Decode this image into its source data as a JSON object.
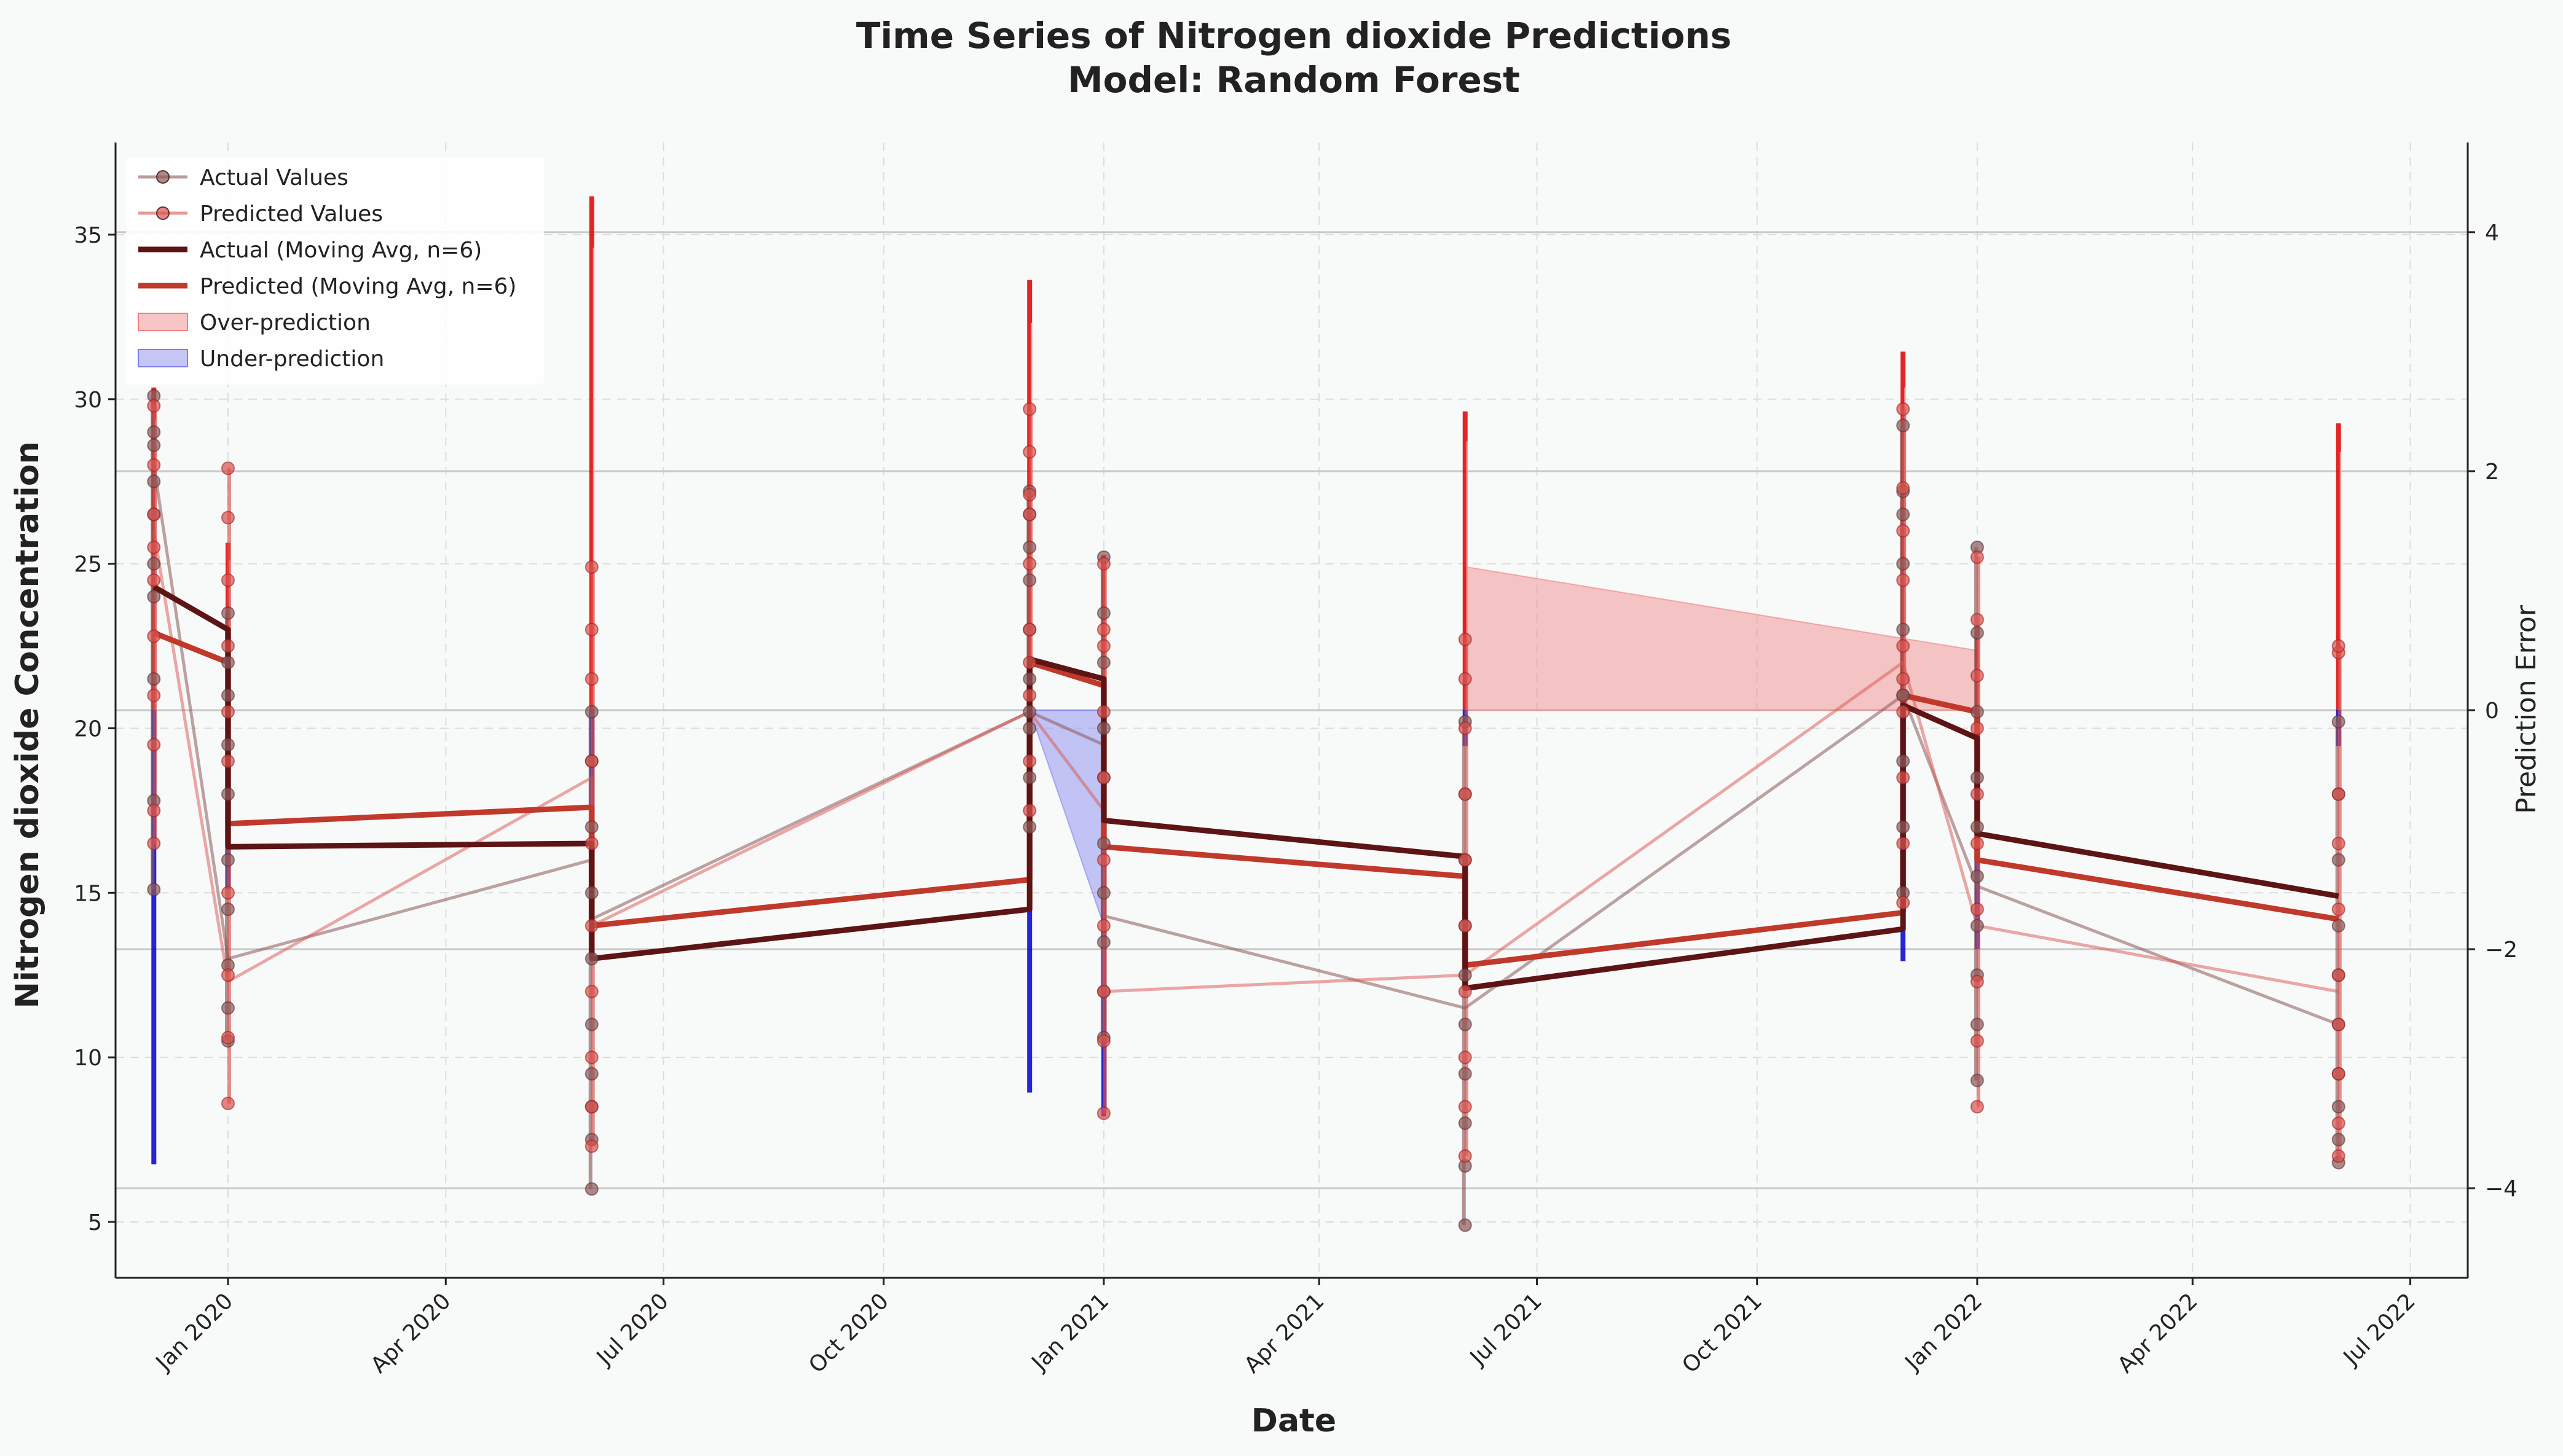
{
  "chart_data": {
    "type": "line",
    "title": "Time Series of Nitrogen dioxide Predictions",
    "subtitle": "Model: Random Forest",
    "xlabel": "Date",
    "ylabel": "Nitrogen dioxide Concentration",
    "ylabel_right": "Prediction Error",
    "xlim": [
      "2019-11-15",
      "2022-07-25"
    ],
    "ylim": [
      3.3,
      37.8
    ],
    "ylim_right": [
      -4.75,
      4.75
    ],
    "x_ticks": [
      {
        "date": "2020-01-01",
        "label": "Jan 2020"
      },
      {
        "date": "2020-04-01",
        "label": "Apr 2020"
      },
      {
        "date": "2020-07-01",
        "label": "Jul 2020"
      },
      {
        "date": "2020-10-01",
        "label": "Oct 2020"
      },
      {
        "date": "2021-01-01",
        "label": "Jan 2021"
      },
      {
        "date": "2021-04-01",
        "label": "Apr 2021"
      },
      {
        "date": "2021-07-01",
        "label": "Jul 2021"
      },
      {
        "date": "2021-10-01",
        "label": "Oct 2021"
      },
      {
        "date": "2022-01-01",
        "label": "Jan 2022"
      },
      {
        "date": "2022-04-01",
        "label": "Apr 2022"
      },
      {
        "date": "2022-07-01",
        "label": "Jul 2022"
      }
    ],
    "y_ticks": [
      5,
      10,
      15,
      20,
      25,
      30,
      35
    ],
    "y_ticks_right": [
      -4,
      -2,
      0,
      2,
      4
    ],
    "grid": true,
    "legend": {
      "position": "top-left",
      "entries": [
        "Actual Values",
        "Predicted Values",
        "Actual (Moving Avg, n=6)",
        "Predicted (Moving Avg, n=6)",
        "Over-prediction",
        "Under-prediction"
      ]
    },
    "colors": {
      "actual": "#8b5a5a",
      "predicted": "#d9534f",
      "actual_ma": "#5c1414",
      "predicted_ma": "#c0392b",
      "over": "#f08080",
      "under": "#8080f0",
      "error_pos": "#e00000",
      "error_neg": "#0000cc"
    },
    "clusters": [
      {
        "date": "2019-12-01",
        "actual": [
          15.1,
          17.8,
          21.5,
          24.0,
          26.5,
          28.6,
          30.1,
          29.0,
          27.5,
          25.0
        ],
        "predicted": [
          16.5,
          17.5,
          19.5,
          22.8,
          24.5,
          26.5,
          28.0,
          29.8,
          25.5,
          21.0
        ],
        "error_range": [
          -3.8,
          2.7
        ]
      },
      {
        "date": "2020-01-01",
        "actual": [
          10.5,
          11.5,
          12.8,
          14.5,
          16.0,
          18.0,
          19.5,
          21.0,
          22.0,
          23.5
        ],
        "predicted": [
          8.6,
          10.6,
          12.5,
          15.0,
          19.0,
          22.5,
          24.5,
          26.4,
          27.9,
          20.5
        ],
        "error_range": [
          -1.5,
          1.4
        ]
      },
      {
        "date": "2020-06-01",
        "actual": [
          6.0,
          7.5,
          8.5,
          9.5,
          11.0,
          13.0,
          15.0,
          17.0,
          19.0,
          20.5
        ],
        "predicted": [
          7.3,
          8.5,
          10.0,
          12.0,
          14.0,
          16.5,
          19.0,
          21.5,
          23.0,
          24.9
        ],
        "error_range": [
          -1.0,
          4.3
        ]
      },
      {
        "date": "2020-12-01",
        "actual": [
          17.0,
          18.5,
          20.0,
          21.5,
          23.0,
          24.5,
          25.5,
          26.5,
          27.2,
          20.5
        ],
        "predicted": [
          17.5,
          19.0,
          21.0,
          23.0,
          25.0,
          26.5,
          27.1,
          28.4,
          29.7,
          22.0
        ],
        "error_range": [
          -3.2,
          3.6
        ]
      },
      {
        "date": "2021-01-01",
        "actual": [
          10.6,
          12.0,
          13.5,
          15.0,
          16.5,
          18.5,
          20.0,
          22.0,
          23.5,
          25.2
        ],
        "predicted": [
          8.3,
          10.5,
          12.0,
          14.0,
          16.0,
          18.5,
          20.5,
          22.5,
          23.0,
          25.0
        ],
        "error_range": [
          -3.4,
          1.3
        ]
      },
      {
        "date": "2021-06-01",
        "actual": [
          4.9,
          6.7,
          8.0,
          9.5,
          11.0,
          12.5,
          14.0,
          16.0,
          18.0,
          20.2
        ],
        "predicted": [
          7.0,
          8.5,
          10.0,
          12.0,
          14.0,
          16.0,
          18.0,
          20.0,
          21.5,
          22.7
        ],
        "error_range": [
          -0.3,
          2.5
        ]
      },
      {
        "date": "2021-12-01",
        "actual": [
          15.0,
          17.0,
          19.0,
          21.0,
          23.0,
          25.0,
          26.5,
          27.2,
          29.2,
          21.0
        ],
        "predicted": [
          14.7,
          16.5,
          18.5,
          20.5,
          22.5,
          24.5,
          26.0,
          27.3,
          29.7,
          21.5
        ],
        "error_range": [
          -2.1,
          3.0
        ]
      },
      {
        "date": "2022-01-01",
        "actual": [
          9.3,
          11.0,
          12.5,
          14.0,
          15.5,
          17.0,
          18.5,
          20.5,
          22.9,
          25.5
        ],
        "predicted": [
          8.5,
          10.5,
          12.3,
          14.5,
          16.5,
          18.0,
          20.0,
          21.6,
          23.3,
          25.2
        ],
        "error_range": [
          -2.0,
          0.7
        ]
      },
      {
        "date": "2022-06-01",
        "actual": [
          6.8,
          7.5,
          8.5,
          9.5,
          11.0,
          12.5,
          14.0,
          16.0,
          18.0,
          20.2
        ],
        "predicted": [
          7.0,
          8.0,
          9.5,
          11.0,
          12.5,
          14.5,
          16.5,
          18.0,
          22.3,
          22.5
        ],
        "error_range": [
          -0.3,
          2.4
        ]
      }
    ],
    "actual_line": [
      {
        "x": "2019-12-01",
        "y": 28.0
      },
      {
        "x": "2020-01-01",
        "y": 13.0
      },
      {
        "x": "2020-06-01",
        "y": 16.0
      },
      {
        "x": "2020-06-01",
        "y": 14.2
      },
      {
        "x": "2020-12-01",
        "y": 20.5
      },
      {
        "x": "2021-01-01",
        "y": 19.5
      },
      {
        "x": "2021-01-01",
        "y": 14.3
      },
      {
        "x": "2021-06-01",
        "y": 11.5
      },
      {
        "x": "2021-12-01",
        "y": 21.0
      },
      {
        "x": "2022-01-01",
        "y": 15.2
      },
      {
        "x": "2022-06-01",
        "y": 11.0
      }
    ],
    "predicted_line": [
      {
        "x": "2019-12-01",
        "y": 26.0
      },
      {
        "x": "2020-01-01",
        "y": 12.3
      },
      {
        "x": "2020-06-01",
        "y": 18.5
      },
      {
        "x": "2020-06-01",
        "y": 14.0
      },
      {
        "x": "2020-12-01",
        "y": 20.5
      },
      {
        "x": "2021-01-01",
        "y": 17.5
      },
      {
        "x": "2021-01-01",
        "y": 12.0
      },
      {
        "x": "2021-06-01",
        "y": 12.5
      },
      {
        "x": "2021-12-01",
        "y": 22.0
      },
      {
        "x": "2022-01-01",
        "y": 14.0
      },
      {
        "x": "2022-06-01",
        "y": 12.0
      }
    ],
    "actual_ma": [
      {
        "x": "2019-12-01",
        "y": 24.3
      },
      {
        "x": "2020-01-01",
        "y": 23.0
      },
      {
        "x": "2020-01-01",
        "y": 16.4
      },
      {
        "x": "2020-06-01",
        "y": 16.5
      },
      {
        "x": "2020-06-01",
        "y": 13.0
      },
      {
        "x": "2020-12-01",
        "y": 14.5
      },
      {
        "x": "2020-12-01",
        "y": 22.1
      },
      {
        "x": "2021-01-01",
        "y": 21.5
      },
      {
        "x": "2021-01-01",
        "y": 17.2
      },
      {
        "x": "2021-06-01",
        "y": 16.1
      },
      {
        "x": "2021-06-01",
        "y": 12.1
      },
      {
        "x": "2021-12-01",
        "y": 13.9
      },
      {
        "x": "2021-12-01",
        "y": 20.7
      },
      {
        "x": "2022-01-01",
        "y": 19.7
      },
      {
        "x": "2022-01-01",
        "y": 16.8
      },
      {
        "x": "2022-06-01",
        "y": 14.9
      }
    ],
    "predicted_ma": [
      {
        "x": "2019-12-01",
        "y": 22.9
      },
      {
        "x": "2020-01-01",
        "y": 22.0
      },
      {
        "x": "2020-01-01",
        "y": 17.1
      },
      {
        "x": "2020-06-01",
        "y": 17.6
      },
      {
        "x": "2020-06-01",
        "y": 14.0
      },
      {
        "x": "2020-12-01",
        "y": 15.4
      },
      {
        "x": "2020-12-01",
        "y": 22.0
      },
      {
        "x": "2021-01-01",
        "y": 21.3
      },
      {
        "x": "2021-01-01",
        "y": 16.4
      },
      {
        "x": "2021-06-01",
        "y": 15.5
      },
      {
        "x": "2021-06-01",
        "y": 12.8
      },
      {
        "x": "2021-12-01",
        "y": 14.4
      },
      {
        "x": "2021-12-01",
        "y": 21.0
      },
      {
        "x": "2022-01-01",
        "y": 20.5
      },
      {
        "x": "2022-01-01",
        "y": 16.0
      },
      {
        "x": "2022-06-01",
        "y": 14.2
      }
    ],
    "error_fill": [
      {
        "kind": "under",
        "points": [
          {
            "x": "2020-12-01",
            "e": 0
          },
          {
            "x": "2021-01-01",
            "e": -1.8
          },
          {
            "x": "2021-01-01",
            "e": 0
          }
        ]
      },
      {
        "kind": "over",
        "points": [
          {
            "x": "2021-06-01",
            "e": 0
          },
          {
            "x": "2021-06-01",
            "e": 1.2
          },
          {
            "x": "2021-12-01",
            "e": 0.6
          },
          {
            "x": "2022-01-01",
            "e": 0.5
          },
          {
            "x": "2022-01-01",
            "e": 0
          }
        ]
      }
    ]
  }
}
